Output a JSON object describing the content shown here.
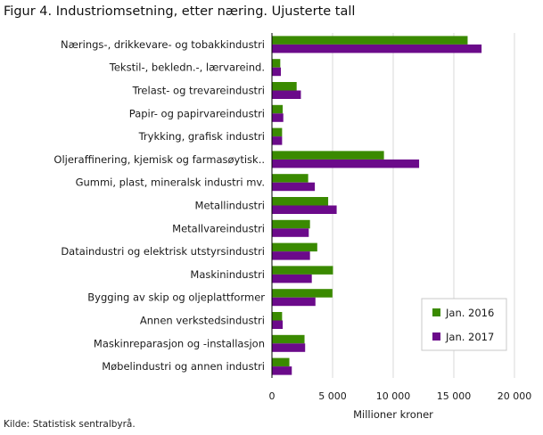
{
  "chart_data": {
    "type": "bar",
    "orientation": "horizontal",
    "title": "Figur 4. Industriomsetning, etter næring. Ujusterte tall",
    "xlabel": "Millioner  kroner",
    "ylabel": "",
    "xlim": [
      0,
      20000
    ],
    "xticks": [
      0,
      5000,
      10000,
      15000,
      20000
    ],
    "xtick_labels": [
      "0",
      "5 000",
      "10 000",
      "15 000",
      "20 000"
    ],
    "grid": true,
    "legend_position": "bottom-right",
    "categories": [
      "Nærings-, drikkevare- og tobakkindustri",
      "Tekstil-, bekledn.-, lærvareind.",
      "Trelast- og trevareindustri",
      "Papir- og papirvareindustri",
      "Trykking, grafisk industri",
      "Oljeraffinering, kjemisk og farmasøytisk..",
      "Gummi, plast, mineralsk industri mv.",
      "Metallindustri",
      "Metallvareindustri",
      "Dataindustri og elektrisk utstyrsindustri",
      "Maskinindustri",
      "Bygging av skip og oljeplattformer",
      "Annen verkstedsindustri",
      "Maskinreparasjon og -installasjon",
      "Møbelindustri og annen industri"
    ],
    "series": [
      {
        "name": "Jan. 2016",
        "color": "#3a8a00",
        "values": [
          16100,
          650,
          2000,
          850,
          800,
          9200,
          2950,
          4600,
          3100,
          3700,
          5000,
          4950,
          800,
          2650,
          1400
        ]
      },
      {
        "name": "Jan. 2017",
        "color": "#6b0a8a",
        "values": [
          17250,
          700,
          2350,
          900,
          800,
          12100,
          3500,
          5300,
          3000,
          3100,
          3250,
          3550,
          850,
          2700,
          1600
        ]
      }
    ]
  },
  "source": "Kilde: Statistisk sentralbyrå."
}
